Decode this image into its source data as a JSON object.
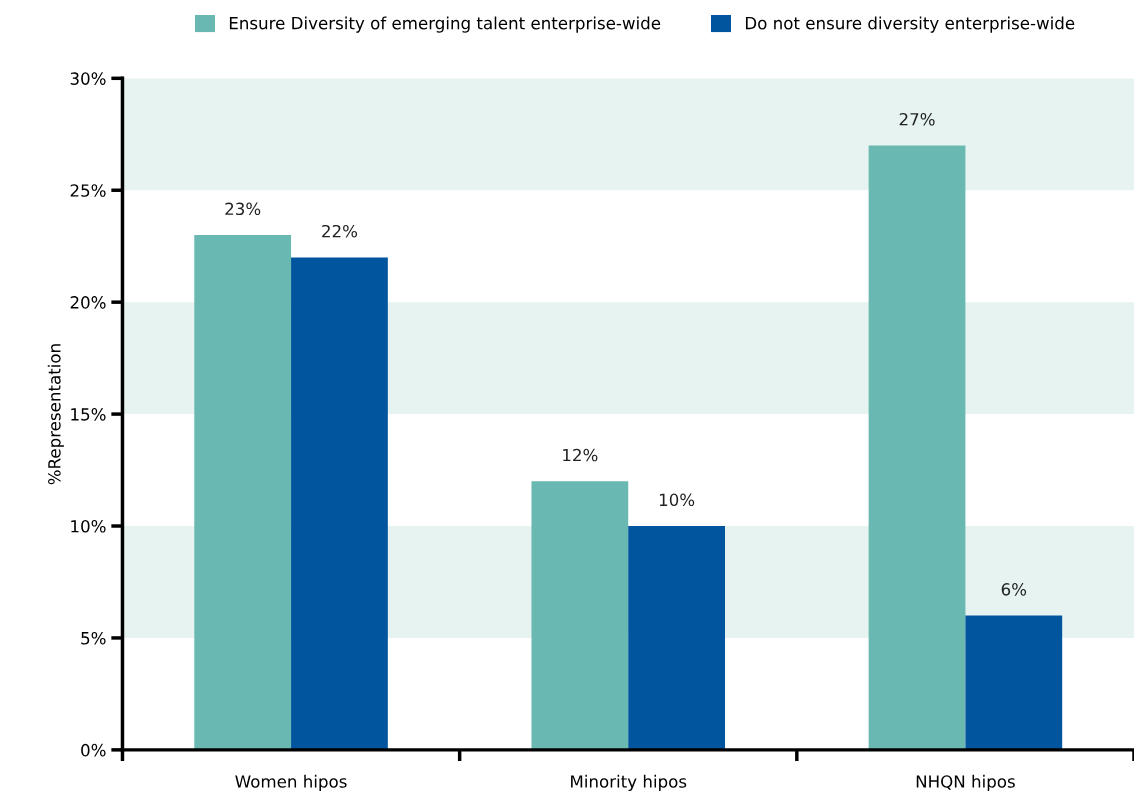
{
  "chart_data": {
    "type": "bar",
    "ylabel": "%Representation",
    "categories": [
      "Women hipos",
      "Minority hipos",
      "NHQN hipos"
    ],
    "series": [
      {
        "name": "Ensure Diversity of emerging talent enterprise-wide",
        "color": "#69b9b2",
        "values": [
          23,
          12,
          27
        ],
        "value_labels": [
          "23%",
          "12%",
          "27%"
        ]
      },
      {
        "name": "Do not ensure diversity enterprise-wide",
        "color": "#00559e",
        "values": [
          22,
          10,
          6
        ],
        "value_labels": [
          "22%",
          "10%",
          "6%"
        ]
      }
    ],
    "ylim": [
      0,
      30
    ],
    "yticks": [
      {
        "value": 0,
        "label": "0%"
      },
      {
        "value": 5,
        "label": "5%"
      },
      {
        "value": 10,
        "label": "10%"
      },
      {
        "value": 15,
        "label": "15%"
      },
      {
        "value": 20,
        "label": "20%"
      },
      {
        "value": 25,
        "label": "25%"
      },
      {
        "value": 30,
        "label": "30%"
      }
    ],
    "bands": [
      {
        "axis": "y",
        "from": 5,
        "to": 10,
        "color": "#e6f3f1"
      },
      {
        "axis": "y",
        "from": 15,
        "to": 20,
        "color": "#e6f3f1"
      },
      {
        "axis": "y",
        "from": 25,
        "to": 30,
        "color": "#e6f3f1"
      }
    ],
    "grid": false,
    "legend": "top"
  }
}
